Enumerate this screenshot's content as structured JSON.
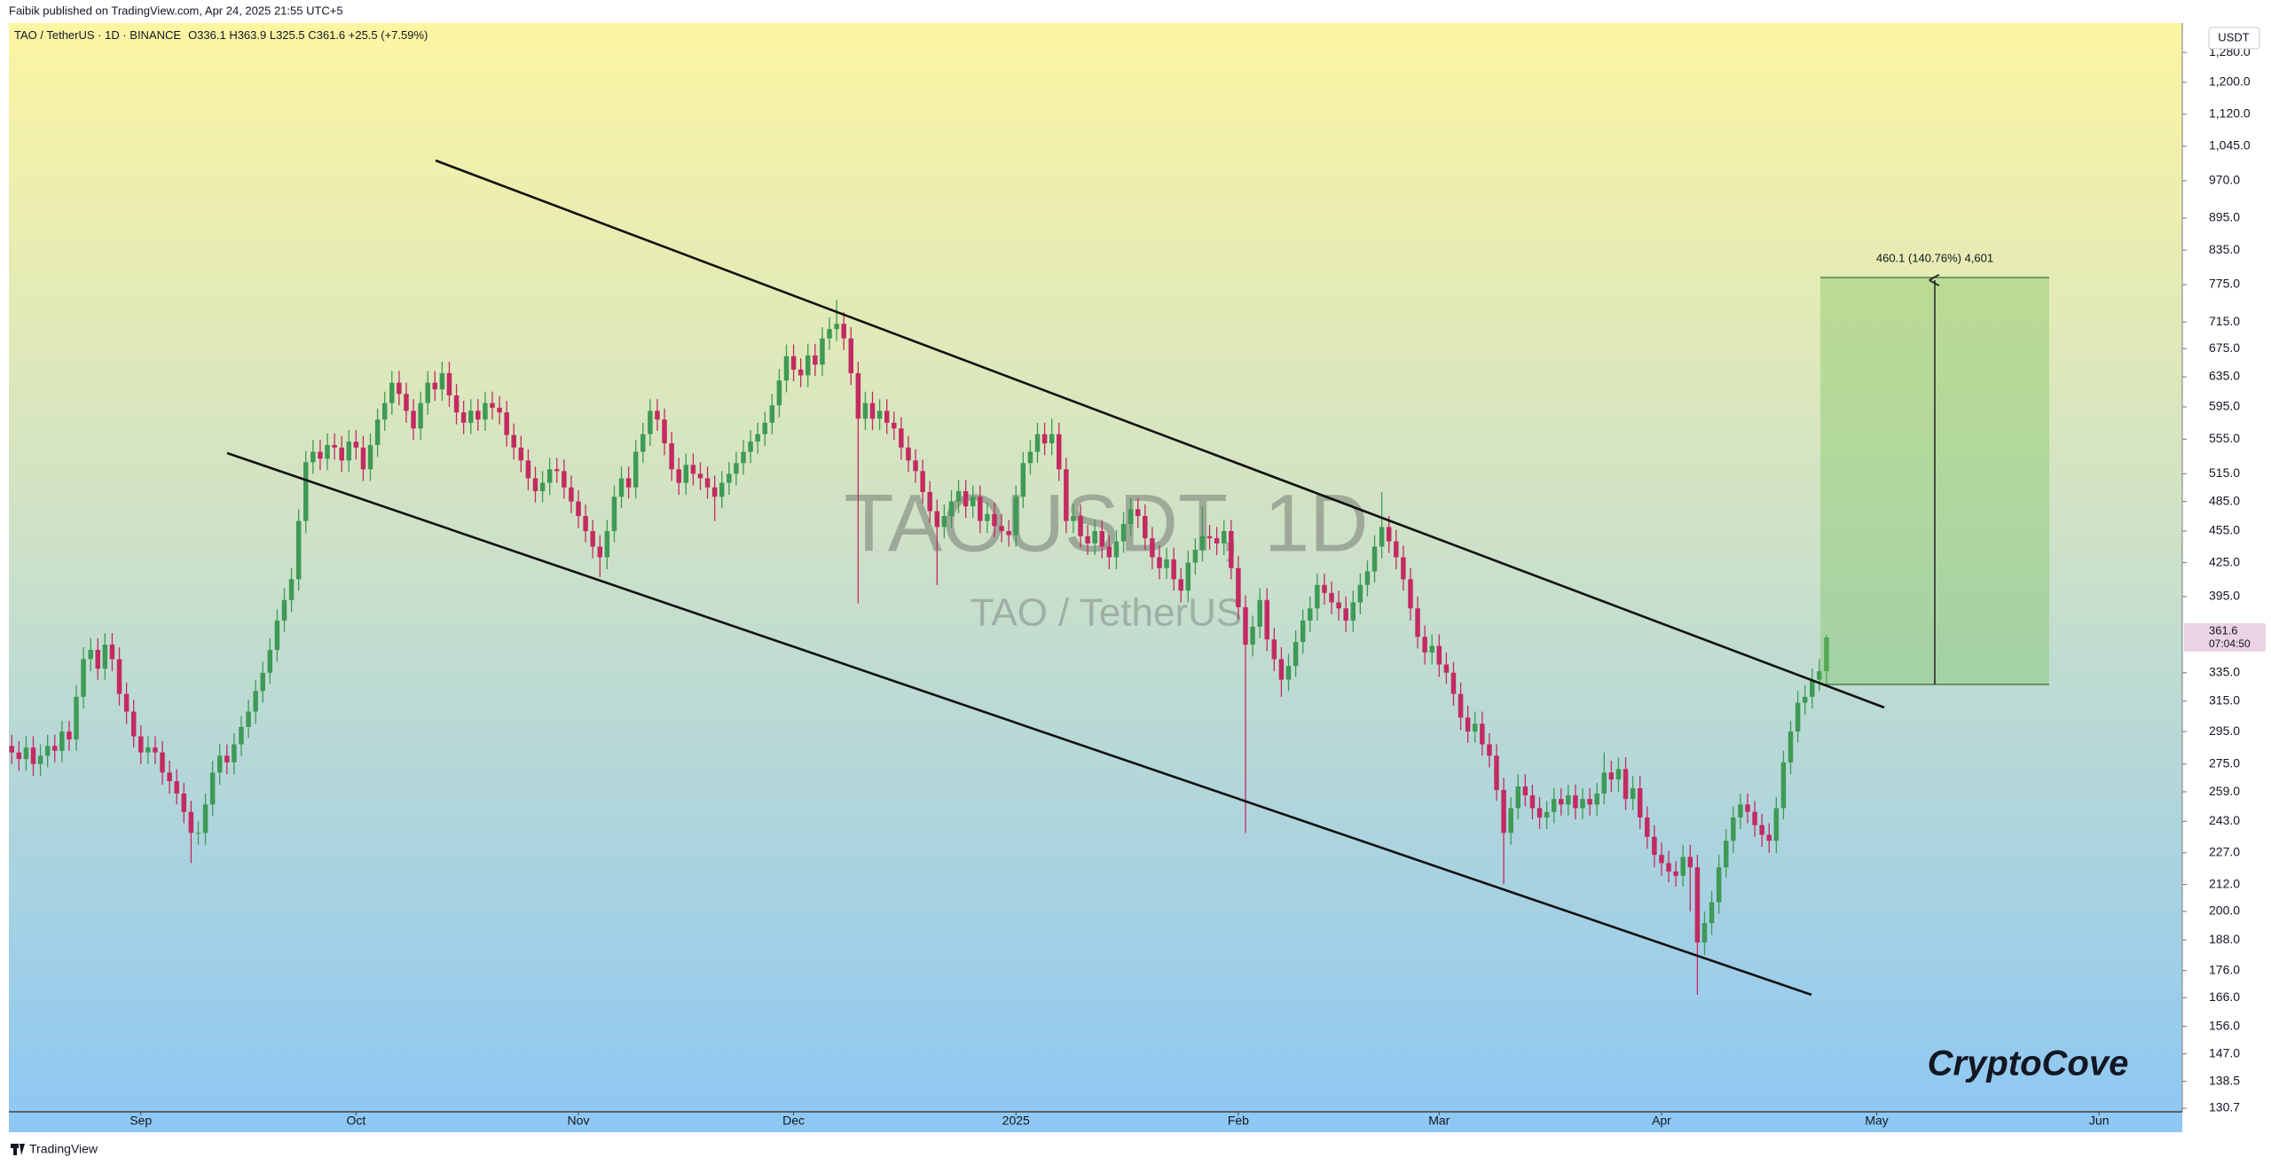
{
  "chart_data": {
    "type": "candlestick",
    "header": "Faibik published on TradingView.com, Apr 24, 2025 21:55 UTC+5",
    "title": "TAO / TetherUS · 1D · BINANCE",
    "ohlc_legend": "O336.1 H363.9 L325.5 C361.6 +25.5 (+7.59%)",
    "watermark": "TAOUSDT, 1D",
    "watermark_subtitle": "TAO / TetherUS",
    "currency": "USDT",
    "last_price": 361.6,
    "countdown": "07:04:50",
    "measure_label": "460.1 (140.76%) 4,601",
    "brand": "CryptoCove",
    "footer": "TradingView",
    "up_color": "#3f9a55",
    "down_color": "#c42a62",
    "log_scale": true,
    "grid": false,
    "xlim": [
      -0.4,
      302.6
    ],
    "xticks": [
      {
        "value": 18,
        "label": "Sep"
      },
      {
        "value": 48,
        "label": "Oct"
      },
      {
        "value": 79,
        "label": "Nov"
      },
      {
        "value": 109,
        "label": "Dec"
      },
      {
        "value": 140,
        "label": "2025"
      },
      {
        "value": 171,
        "label": "Feb"
      },
      {
        "value": 199,
        "label": "Mar"
      },
      {
        "value": 230,
        "label": "Apr"
      },
      {
        "value": 260,
        "label": "May"
      },
      {
        "value": 291,
        "label": "Jun"
      }
    ],
    "ylim": [
      129.7,
      1364
    ],
    "yticks": [
      {
        "value": 1280,
        "label": "1,280.0"
      },
      {
        "value": 1200,
        "label": "1,200.0"
      },
      {
        "value": 1120,
        "label": "1,120.0"
      },
      {
        "value": 1045,
        "label": "1,045.0"
      },
      {
        "value": 970,
        "label": "970.0"
      },
      {
        "value": 895,
        "label": "895.0"
      },
      {
        "value": 835,
        "label": "835.0"
      },
      {
        "value": 775,
        "label": "775.0"
      },
      {
        "value": 715,
        "label": "715.0"
      },
      {
        "value": 675,
        "label": "675.0"
      },
      {
        "value": 635,
        "label": "635.0"
      },
      {
        "value": 595,
        "label": "595.0"
      },
      {
        "value": 555,
        "label": "555.0"
      },
      {
        "value": 515,
        "label": "515.0"
      },
      {
        "value": 485,
        "label": "485.0"
      },
      {
        "value": 455,
        "label": "455.0"
      },
      {
        "value": 425,
        "label": "425.0"
      },
      {
        "value": 395,
        "label": "395.0"
      },
      {
        "value": 335,
        "label": "335.0"
      },
      {
        "value": 315,
        "label": "315.0"
      },
      {
        "value": 295,
        "label": "295.0"
      },
      {
        "value": 275,
        "label": "275.0"
      },
      {
        "value": 259,
        "label": "259.0"
      },
      {
        "value": 243,
        "label": "243.0"
      },
      {
        "value": 227,
        "label": "227.0"
      },
      {
        "value": 212,
        "label": "212.0"
      },
      {
        "value": 200,
        "label": "200.0"
      },
      {
        "value": 188,
        "label": "188.0"
      },
      {
        "value": 176,
        "label": "176.0"
      },
      {
        "value": 166,
        "label": "166.0"
      },
      {
        "value": 156,
        "label": "156.0"
      },
      {
        "value": 147,
        "label": "147.0"
      },
      138.5,
      130.7
    ],
    "open": [
      286,
      282,
      278,
      285,
      275,
      280,
      286,
      283,
      295,
      290,
      318,
      345,
      352,
      338,
      356,
      345,
      320,
      308,
      292,
      282,
      285,
      282,
      270,
      265,
      258,
      248,
      237,
      237,
      252,
      270,
      280,
      276,
      287,
      298,
      308,
      322,
      335,
      352,
      375,
      392,
      410,
      465,
      528,
      540,
      532,
      548,
      545,
      530,
      552,
      545,
      520,
      548,
      579,
      600,
      627,
      612,
      590,
      568,
      600,
      627,
      618,
      640,
      610,
      588,
      575,
      590,
      579,
      600,
      594,
      588,
      560,
      545,
      530,
      510,
      496,
      505,
      520,
      518,
      500,
      485,
      470,
      455,
      440,
      430,
      455,
      490,
      510,
      500,
      540,
      561,
      590,
      579,
      550,
      520,
      505,
      525,
      515,
      510,
      500,
      490,
      505,
      515,
      527,
      540,
      552,
      561,
      575,
      597,
      630,
      664,
      645,
      637,
      665,
      652,
      690,
      704,
      712,
      690,
      640,
      580,
      600,
      580,
      590,
      575,
      568,
      545,
      530,
      518,
      495,
      475,
      459,
      470,
      485,
      496,
      480,
      490,
      465,
      472,
      460,
      455,
      451,
      490,
      527,
      540,
      561,
      550,
      561,
      520,
      465,
      470,
      450,
      443,
      455,
      440,
      430,
      445,
      462,
      477,
      470,
      448,
      430,
      420,
      428,
      410,
      400,
      425,
      437,
      450,
      448,
      443,
      455,
      420,
      386,
      356,
      370,
      392,
      360,
      345,
      330,
      340,
      358,
      375,
      385,
      405,
      398,
      390,
      385,
      375,
      390,
      405,
      417,
      440,
      459,
      445,
      430,
      410,
      385,
      362,
      350,
      355,
      341,
      335,
      320,
      304,
      295,
      300,
      287,
      280,
      260,
      237,
      250,
      262,
      257,
      250,
      245,
      248,
      255,
      252,
      257,
      250,
      255,
      252,
      258,
      270,
      266,
      272,
      255,
      261,
      245,
      235,
      226,
      222,
      218,
      216,
      225,
      220,
      187,
      195,
      204,
      220,
      233,
      245,
      252,
      248,
      241,
      236,
      233,
      250,
      276,
      295,
      314,
      318,
      330,
      336.1
    ],
    "high": [
      293,
      289,
      292,
      292,
      287,
      293,
      293,
      302,
      302,
      326,
      354,
      361,
      361,
      365,
      365,
      354,
      328,
      316,
      299,
      292,
      292,
      289,
      277,
      272,
      264,
      254,
      243,
      258,
      277,
      287,
      287,
      294,
      305,
      316,
      330,
      343,
      361,
      384,
      402,
      420,
      477,
      541,
      554,
      554,
      562,
      562,
      559,
      566,
      566,
      559,
      562,
      593,
      615,
      643,
      643,
      627,
      605,
      615,
      643,
      643,
      656,
      656,
      625,
      603,
      605,
      605,
      615,
      615,
      609,
      603,
      574,
      559,
      543,
      523,
      518,
      533,
      533,
      531,
      513,
      497,
      482,
      466,
      451,
      466,
      502,
      523,
      523,
      554,
      575,
      605,
      605,
      593,
      564,
      533,
      538,
      538,
      528,
      523,
      513,
      518,
      528,
      540,
      554,
      566,
      575,
      589,
      612,
      646,
      681,
      681,
      661,
      682,
      682,
      707,
      722,
      750,
      730,
      707,
      656,
      615,
      615,
      605,
      605,
      589,
      582,
      559,
      543,
      531,
      507,
      487,
      482,
      497,
      508,
      508,
      502,
      502,
      484,
      484,
      472,
      466,
      502,
      540,
      554,
      575,
      575,
      580,
      575,
      533,
      482,
      482,
      461,
      466,
      466,
      451,
      456,
      474,
      489,
      489,
      482,
      459,
      441,
      439,
      439,
      420,
      436,
      448,
      480,
      461,
      459,
      466,
      466,
      431,
      396,
      379,
      402,
      402,
      369,
      354,
      349,
      367,
      384,
      395,
      415,
      415,
      408,
      400,
      395,
      400,
      415,
      427,
      451,
      495,
      470,
      456,
      441,
      420,
      395,
      371,
      364,
      364,
      350,
      343,
      328,
      312,
      308,
      308,
      294,
      287,
      267,
      256,
      269,
      269,
      263,
      256,
      254,
      261,
      261,
      263,
      263,
      261,
      261,
      264,
      282,
      277,
      279,
      279,
      268,
      268,
      251,
      241,
      232,
      228,
      223,
      231,
      231,
      226,
      200,
      209,
      226,
      239,
      251,
      258,
      258,
      254,
      247,
      242,
      256,
      283,
      302,
      322,
      326,
      338,
      345,
      363.9
    ],
    "low": [
      275,
      271,
      271,
      268,
      268,
      273,
      276,
      276,
      283,
      283,
      310,
      336,
      330,
      330,
      336,
      312,
      300,
      285,
      275,
      275,
      275,
      263,
      258,
      252,
      242,
      222,
      231,
      231,
      246,
      263,
      269,
      269,
      280,
      291,
      300,
      314,
      327,
      343,
      366,
      382,
      400,
      453,
      515,
      519,
      519,
      531,
      517,
      517,
      531,
      507,
      507,
      534,
      565,
      585,
      597,
      575,
      554,
      554,
      585,
      603,
      603,
      595,
      573,
      561,
      561,
      565,
      565,
      579,
      573,
      546,
      531,
      517,
      497,
      484,
      484,
      492,
      505,
      488,
      473,
      458,
      444,
      429,
      412,
      419,
      444,
      478,
      488,
      488,
      527,
      547,
      565,
      536,
      507,
      492,
      492,
      502,
      497,
      488,
      465,
      478,
      492,
      502,
      514,
      527,
      538,
      547,
      561,
      582,
      614,
      629,
      621,
      621,
      636,
      636,
      673,
      686,
      673,
      624,
      389,
      566,
      566,
      566,
      561,
      554,
      531,
      517,
      505,
      483,
      463,
      405,
      448,
      458,
      473,
      468,
      468,
      453,
      453,
      449,
      444,
      440,
      440,
      478,
      514,
      527,
      536,
      536,
      507,
      453,
      453,
      439,
      432,
      432,
      429,
      419,
      419,
      434,
      450,
      458,
      437,
      419,
      410,
      410,
      400,
      390,
      390,
      414,
      426,
      437,
      432,
      432,
      410,
      376,
      237,
      347,
      361,
      351,
      336,
      318,
      322,
      332,
      349,
      366,
      375,
      388,
      380,
      375,
      366,
      366,
      380,
      395,
      407,
      429,
      434,
      419,
      400,
      375,
      353,
      341,
      341,
      332,
      327,
      312,
      296,
      288,
      288,
      280,
      273,
      254,
      212,
      231,
      244,
      251,
      244,
      239,
      239,
      242,
      246,
      246,
      244,
      244,
      246,
      246,
      252,
      259,
      259,
      249,
      249,
      239,
      229,
      220,
      216,
      213,
      211,
      211,
      200,
      167,
      182,
      190,
      199,
      215,
      227,
      239,
      242,
      235,
      230,
      227,
      227,
      244,
      269,
      288,
      306,
      310,
      322,
      325.5
    ],
    "close": [
      282,
      278,
      285,
      275,
      280,
      286,
      283,
      295,
      290,
      318,
      345,
      352,
      338,
      356,
      345,
      320,
      308,
      292,
      282,
      285,
      282,
      270,
      265,
      258,
      248,
      237,
      237,
      252,
      270,
      280,
      276,
      287,
      298,
      308,
      322,
      335,
      352,
      375,
      392,
      410,
      465,
      528,
      540,
      532,
      548,
      545,
      530,
      552,
      545,
      520,
      548,
      579,
      600,
      627,
      612,
      590,
      568,
      600,
      627,
      618,
      640,
      610,
      588,
      575,
      590,
      579,
      600,
      594,
      588,
      560,
      545,
      530,
      510,
      496,
      505,
      520,
      518,
      500,
      485,
      470,
      455,
      440,
      430,
      455,
      490,
      510,
      500,
      540,
      561,
      590,
      579,
      550,
      520,
      505,
      525,
      515,
      510,
      500,
      490,
      505,
      515,
      527,
      540,
      552,
      561,
      575,
      597,
      630,
      664,
      645,
      637,
      665,
      652,
      690,
      704,
      712,
      690,
      640,
      580,
      600,
      580,
      590,
      575,
      568,
      545,
      530,
      518,
      495,
      475,
      459,
      470,
      485,
      496,
      480,
      490,
      465,
      472,
      460,
      455,
      451,
      490,
      527,
      540,
      561,
      550,
      561,
      520,
      465,
      470,
      450,
      443,
      455,
      440,
      430,
      445,
      462,
      477,
      470,
      448,
      430,
      420,
      428,
      410,
      400,
      425,
      437,
      450,
      448,
      443,
      455,
      420,
      386,
      356,
      370,
      392,
      360,
      345,
      330,
      340,
      358,
      375,
      385,
      405,
      398,
      390,
      385,
      375,
      390,
      405,
      417,
      440,
      459,
      445,
      430,
      410,
      385,
      362,
      350,
      355,
      341,
      335,
      320,
      304,
      295,
      300,
      287,
      280,
      260,
      237,
      250,
      262,
      257,
      250,
      245,
      248,
      255,
      252,
      257,
      250,
      255,
      252,
      258,
      270,
      266,
      272,
      255,
      261,
      245,
      235,
      226,
      222,
      218,
      216,
      225,
      220,
      187,
      195,
      204,
      220,
      233,
      245,
      252,
      248,
      241,
      236,
      233,
      250,
      276,
      295,
      314,
      318,
      330,
      336.1,
      361.6
    ]
  }
}
